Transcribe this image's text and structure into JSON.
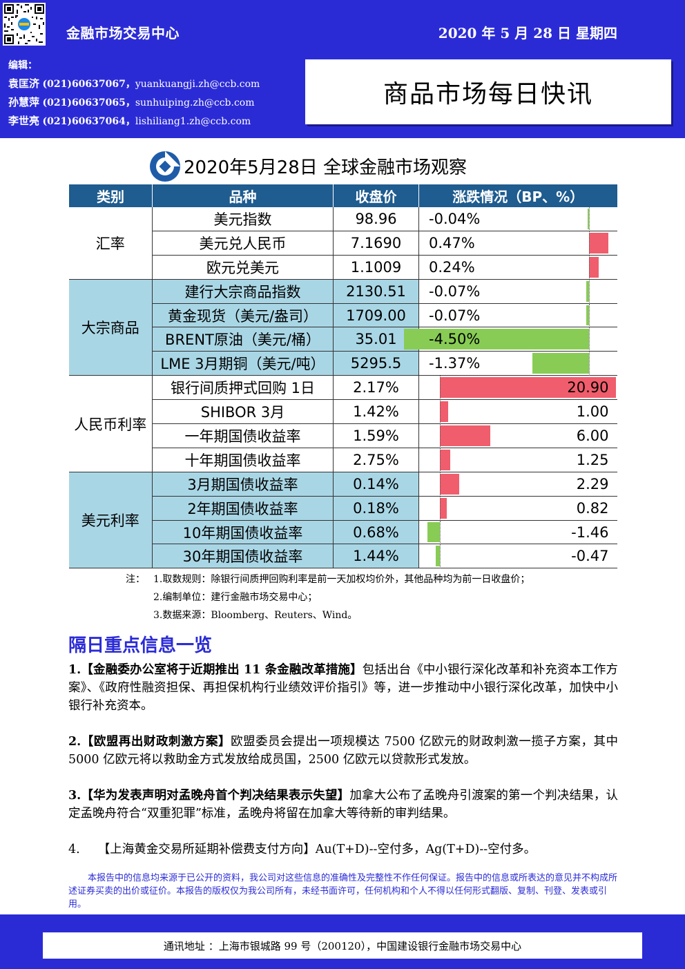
{
  "header": {
    "center_name": "金融市场交易中心",
    "date": "2020 年 5 月 28 日  星期四",
    "editors_label": "编辑：",
    "editors": [
      {
        "name": "袁匡济",
        "phone": "(021)60637067，",
        "email": "yuankuangji.zh@ccb.com"
      },
      {
        "name": "孙慧萍",
        "phone": "(021)60637065，",
        "email": "sunhuiping.zh@ccb.com"
      },
      {
        "name": "李世亮",
        "phone": "(021)60637064，",
        "email": "lishiliang1.zh@ccb.com"
      }
    ],
    "report_title": "商品市场每日快讯"
  },
  "table_title": "2020年5月28日 全球金融市场观察",
  "table": {
    "headers": [
      "类别",
      "品种",
      "收盘价",
      "涨跌情况（BP、%）"
    ],
    "groups": [
      {
        "category": "汇率",
        "shaded": false,
        "rows": [
          {
            "name": "美元指数",
            "close": "98.96",
            "change": "-0.04%"
          },
          {
            "name": "美元兑人民币",
            "close": "7.1690",
            "change": "0.47%"
          },
          {
            "name": "欧元兑美元",
            "close": "1.1009",
            "change": "0.24%"
          }
        ]
      },
      {
        "category": "大宗商品",
        "shaded": true,
        "rows": [
          {
            "name": "建行大宗商品指数",
            "close": "2130.51",
            "change": "-0.07%"
          },
          {
            "name": "黄金现货（美元/盎司）",
            "close": "1709.00",
            "change": "-0.07%"
          },
          {
            "name": "BRENT原油（美元/桶）",
            "close": "35.01",
            "change": "-4.50%"
          },
          {
            "name": "LME 3月期铜（美元/吨）",
            "close": "5295.5",
            "change": "-1.37%"
          }
        ]
      },
      {
        "category": "人民币利率",
        "shaded": false,
        "rows": [
          {
            "name": "银行间质押式回购 1日",
            "close": "2.17%",
            "change": "20.90"
          },
          {
            "name": "SHIBOR 3月",
            "close": "1.42%",
            "change": "1.00"
          },
          {
            "name": "一年期国债收益率",
            "close": "1.59%",
            "change": "6.00"
          },
          {
            "name": "十年期国债收益率",
            "close": "2.75%",
            "change": "1.25"
          }
        ]
      },
      {
        "category": "美元利率",
        "shaded": true,
        "rows": [
          {
            "name": "3月期国债收益率",
            "close": "0.14%",
            "change": "2.29"
          },
          {
            "name": "2年期国债收益率",
            "close": "0.18%",
            "change": "0.82"
          },
          {
            "name": "10年期国债收益率",
            "close": "0.68%",
            "change": "-1.46"
          },
          {
            "name": "30年期国债收益率",
            "close": "1.44%",
            "change": "-0.47"
          }
        ]
      }
    ]
  },
  "chart_data": [
    {
      "type": "bar",
      "categories": [
        "美元指数",
        "美元兑人民币",
        "欧元兑美元",
        "建行大宗商品指数",
        "黄金现货（美元/盎司）",
        "BRENT原油（美元/桶）",
        "LME 3月期铜（美元/吨）"
      ],
      "values": [
        -0.04,
        0.47,
        0.24,
        -0.07,
        -0.07,
        -4.5,
        -1.37
      ]
    },
    {
      "type": "bar",
      "categories": [
        "银行间质押式回购 1日",
        "SHIBOR 3月",
        "一年期国债收益率",
        "十年期国债收益率",
        "3月期国债收益率",
        "2年期国债收益率",
        "10年期国债收益率",
        "30年期国债收益率"
      ],
      "values": [
        20.9,
        1.0,
        6.0,
        1.25,
        2.29,
        0.82,
        -1.46,
        -0.47
      ]
    }
  ],
  "colors": {
    "header_blue": "#2b2bd6",
    "table_header": "#1f5c8f",
    "shade": "#a9d6e5",
    "up": "#f05d6c",
    "down": "#88cc55"
  },
  "notes": {
    "label": "注：",
    "items": [
      "1.取数规则：除银行间质押回购利率是前一天加权均价外，其他品种均为前一日收盘价；",
      "2.编制单位：建行金融市场交易中心；",
      "3.数据来源：Bloomberg、Reuters、Wind。"
    ]
  },
  "section_title": "隔日重点信息一览",
  "news": [
    {
      "num": "1.",
      "headline": "【金融委办公室将于近期推出 11 条金融改革措施】",
      "body": "包括出台《中小银行深化改革和补充资本工作方案》、《政府性融资担保、再担保机构行业绩效评价指引》等，进一步推动中小银行深化改革，加快中小银行补充资本。"
    },
    {
      "num": "2.",
      "headline": "【欧盟再出财政刺激方案】",
      "body": "欧盟委员会提出一项规模达 7500 亿欧元的财政刺激一揽子方案，其中 5000 亿欧元将以救助金方式发放给成员国，2500 亿欧元以贷款形式发放。"
    },
    {
      "num": "3.",
      "headline": "【华为发表声明对孟晚舟首个判决结果表示失望】",
      "body": "加拿大公布了孟晚舟引渡案的第一个判决结果，认定孟晚舟符合“双重犯罪”标准，孟晚舟将留在加拿大等待新的审判结果。"
    },
    {
      "num": "4.",
      "headline": "【上海黄金交易所延期补偿费支付方向】",
      "body": "Au(T+D)--空付多，Ag(T+D)--空付多。"
    }
  ],
  "disclaimer": "本报告中的信息均来源于已公开的资料，我公司对这些信息的准确性及完整性不作任何保证。报告中的信息或所表达的意见并不构成所述证券买卖的出价或征价。本报告的版权仅为我公司所有，未经书面许可，任何机构和个人不得以任何形式翻版、复制、刊登、发表或引用。",
  "footer": "通讯地址 ：上海市银城路 99 号（200120），中国建设银行金融市场交易中心"
}
